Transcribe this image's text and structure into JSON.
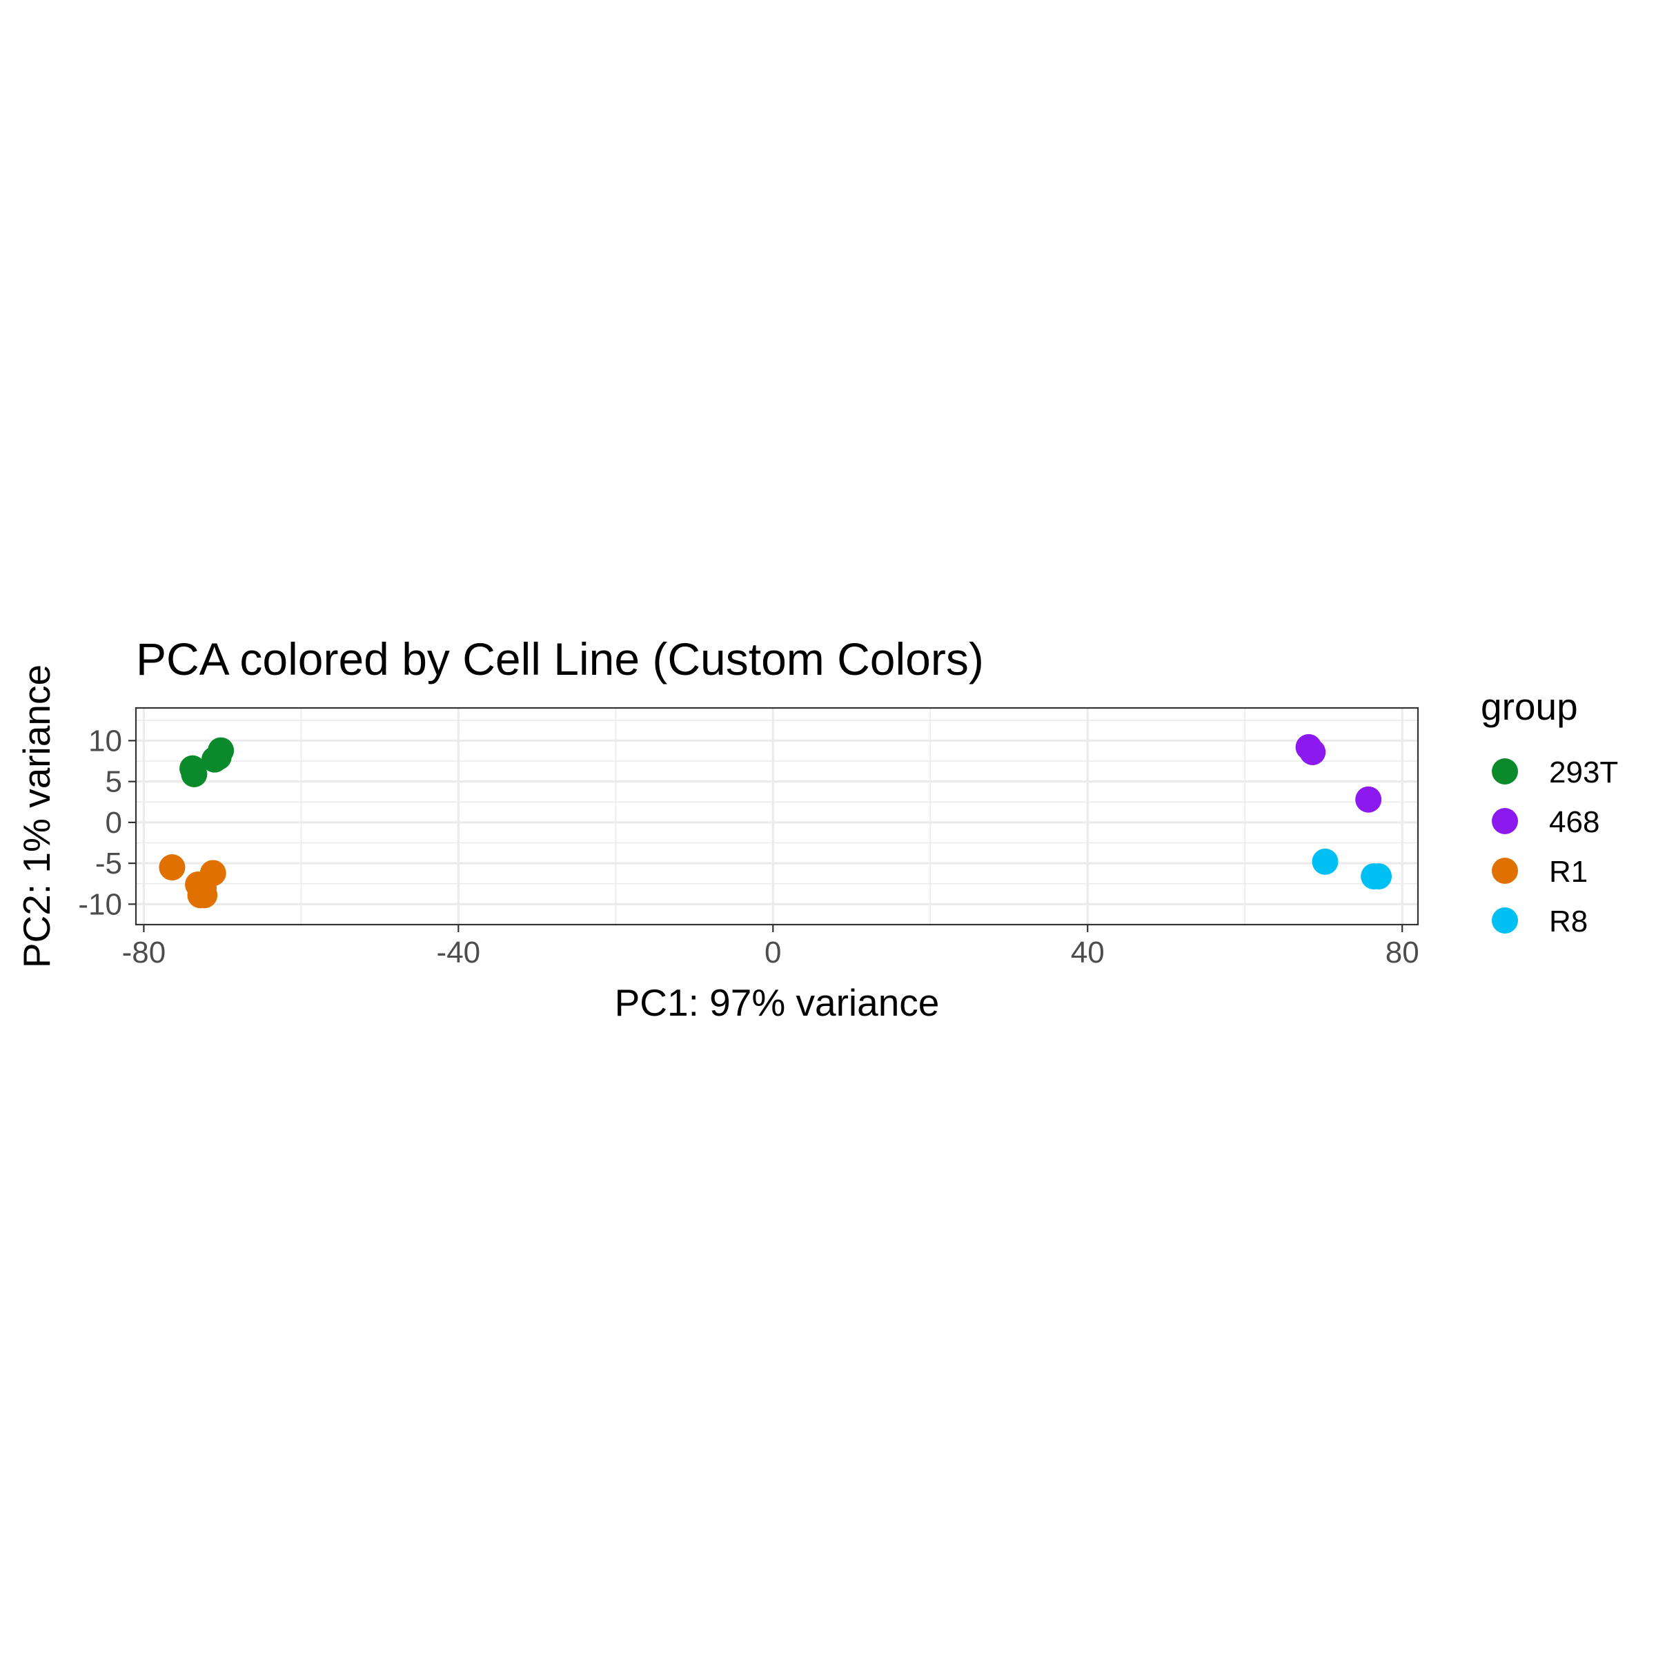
{
  "chart_data": {
    "type": "scatter",
    "title": "PCA colored by Cell Line (Custom Colors)",
    "xlabel": "PC1: 97% variance",
    "ylabel": "PC2: 1% variance",
    "xlim": [
      -81,
      82
    ],
    "ylim": [
      -12.5,
      14
    ],
    "x_ticks": [
      -80,
      -40,
      0,
      40,
      80
    ],
    "x_tick_labels": [
      "-80",
      "-40",
      "0",
      "40",
      "80"
    ],
    "y_ticks": [
      10,
      5,
      0,
      -5,
      -10
    ],
    "y_tick_labels": [
      "10",
      "5",
      "0",
      "-5",
      "-10"
    ],
    "grid": true,
    "legend": {
      "title": "group",
      "position": "right"
    },
    "series": [
      {
        "name": "293T",
        "color": "#0a8a2a",
        "points": [
          {
            "x": -73.8,
            "y": 6.6
          },
          {
            "x": -73.6,
            "y": 5.9
          },
          {
            "x": -71.0,
            "y": 7.7
          },
          {
            "x": -70.5,
            "y": 8.0
          },
          {
            "x": -70.2,
            "y": 8.8
          }
        ]
      },
      {
        "name": "468",
        "color": "#8c1aef",
        "points": [
          {
            "x": 68.1,
            "y": 9.2
          },
          {
            "x": 68.6,
            "y": 8.6
          },
          {
            "x": 75.7,
            "y": 2.8
          }
        ]
      },
      {
        "name": "R1",
        "color": "#e07000",
        "points": [
          {
            "x": -76.4,
            "y": -5.5
          },
          {
            "x": -71.2,
            "y": -6.2
          },
          {
            "x": -73.1,
            "y": -7.6
          },
          {
            "x": -72.4,
            "y": -8.0
          },
          {
            "x": -72.8,
            "y": -8.9
          },
          {
            "x": -72.3,
            "y": -8.9
          }
        ]
      },
      {
        "name": "R8",
        "color": "#00bff2",
        "points": [
          {
            "x": 70.2,
            "y": -4.8
          },
          {
            "x": 76.4,
            "y": -6.6
          },
          {
            "x": 77.0,
            "y": -6.6
          }
        ]
      }
    ]
  }
}
